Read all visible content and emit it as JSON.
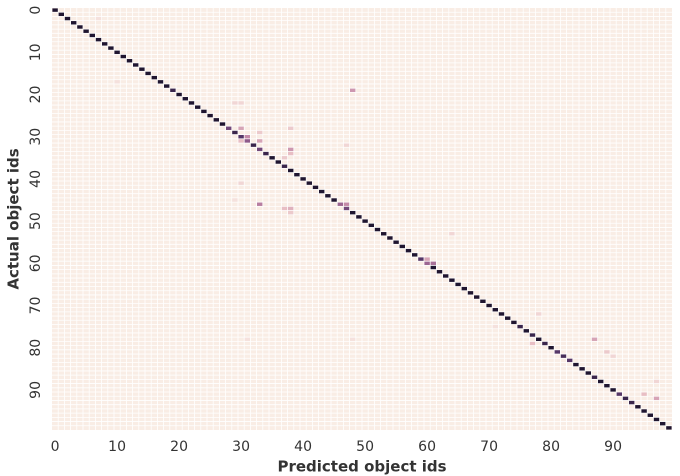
{
  "chart_data": {
    "type": "heatmap",
    "xlabel": "Predicted object ids",
    "ylabel": "Actual object ids",
    "xlim": [
      0,
      100
    ],
    "ylim": [
      0,
      100
    ],
    "xticks": [
      0,
      10,
      20,
      30,
      40,
      50,
      60,
      70,
      80,
      90
    ],
    "yticks": [
      0,
      10,
      20,
      30,
      40,
      50,
      60,
      70,
      80,
      90
    ],
    "colors": [
      "#f9ede5",
      "#e8bec4",
      "#c48aa8",
      "#8e5a8a",
      "#553667",
      "#1f1530"
    ],
    "diagonal": [
      1,
      1,
      1,
      1,
      1,
      1,
      1,
      1,
      1,
      1,
      1,
      1,
      1,
      1,
      1,
      1,
      1,
      1,
      1,
      0.9,
      1,
      1,
      1,
      1,
      1,
      1,
      1,
      1,
      0.7,
      0.9,
      0.8,
      0.6,
      0.9,
      0.7,
      0.9,
      1,
      1,
      0.9,
      1,
      1,
      1,
      1,
      1,
      1,
      1,
      1,
      0.55,
      0.7,
      1,
      1,
      1,
      1,
      1,
      1,
      1,
      1,
      1,
      1,
      1,
      0.8,
      0.55,
      1,
      1,
      1,
      1,
      1,
      1,
      1,
      1,
      1,
      1,
      1,
      1,
      1,
      1,
      0.9,
      1,
      0.9,
      1,
      0.9,
      1,
      0.8,
      0.85,
      0.8,
      1,
      1,
      1,
      0.9,
      1,
      1,
      1,
      0.8,
      0.9,
      0.9,
      1,
      1,
      1,
      1,
      1,
      1
    ],
    "cells": [
      [
        2,
        7,
        0.05
      ],
      [
        17,
        10,
        0.05
      ],
      [
        19,
        48,
        0.35
      ],
      [
        22,
        29,
        0.1
      ],
      [
        22,
        30,
        0.1
      ],
      [
        28,
        30,
        0.3
      ],
      [
        28,
        38,
        0.15
      ],
      [
        29,
        33,
        0.15
      ],
      [
        30,
        31,
        0.4
      ],
      [
        31,
        30,
        0.2
      ],
      [
        31,
        33,
        0.3
      ],
      [
        32,
        47,
        0.1
      ],
      [
        33,
        38,
        0.35
      ],
      [
        34,
        38,
        0.2
      ],
      [
        35,
        37,
        0.15
      ],
      [
        41,
        30,
        0.1
      ],
      [
        45,
        29,
        0.05
      ],
      [
        46,
        33,
        0.45
      ],
      [
        46,
        47,
        0.4
      ],
      [
        47,
        37,
        0.2
      ],
      [
        47,
        38,
        0.25
      ],
      [
        48,
        38,
        0.15
      ],
      [
        53,
        64,
        0.1
      ],
      [
        59,
        60,
        0.3
      ],
      [
        60,
        61,
        0.5
      ],
      [
        72,
        78,
        0.1
      ],
      [
        75,
        71,
        0.05
      ],
      [
        78,
        31,
        0.05
      ],
      [
        78,
        48,
        0.05
      ],
      [
        78,
        87,
        0.3
      ],
      [
        79,
        77,
        0.2
      ],
      [
        81,
        89,
        0.15
      ],
      [
        82,
        90,
        0.1
      ],
      [
        88,
        97,
        0.1
      ],
      [
        91,
        95,
        0.2
      ],
      [
        92,
        97,
        0.3
      ]
    ]
  }
}
